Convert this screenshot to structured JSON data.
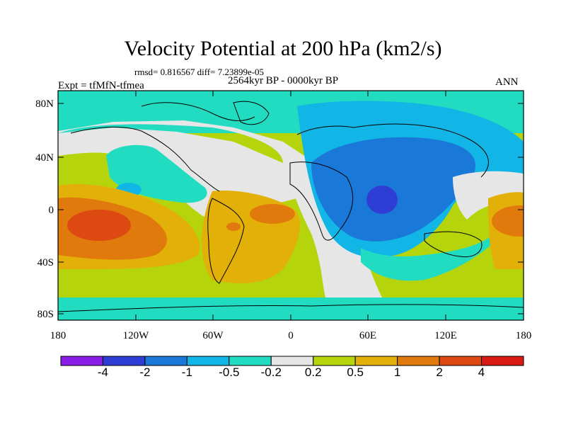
{
  "title": "Velocity Potential at 200 hPa (km2/s)",
  "stats_line": "rmsd= 0.816567 diff= 7.23899e-05",
  "period": "2564kyr BP - 0000kyr BP",
  "experiment": "Expt = tfMfN-tfmea",
  "season": "ANN",
  "map": {
    "lat_labels": [
      "80N",
      "40N",
      "0",
      "40S",
      "80S"
    ],
    "lon_labels": [
      "180",
      "120W",
      "60W",
      "0",
      "60E",
      "120E",
      "180"
    ]
  },
  "colorbar": {
    "levels": [
      "-4",
      "-2",
      "-1",
      "-0.5",
      "-0.2",
      "0.2",
      "0.5",
      "1",
      "2",
      "4"
    ],
    "colors": [
      "#8a1ee8",
      "#2e3ed4",
      "#1a78d8",
      "#12b6e6",
      "#22dcc2",
      "#e6e6e6",
      "#b6d40c",
      "#e2b008",
      "#e07a0c",
      "#dc4a12",
      "#d81a12"
    ]
  },
  "colors": {
    "ocean_green": "#22dcc2",
    "land_line": "#000000"
  }
}
